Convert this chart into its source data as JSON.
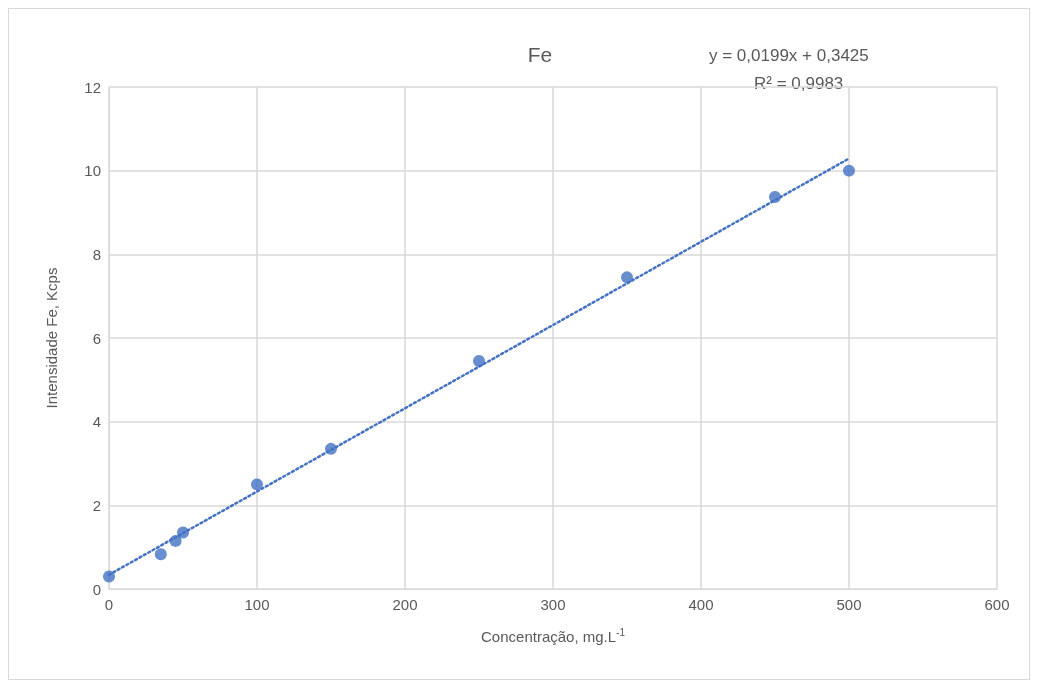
{
  "chart_data": {
    "type": "scatter",
    "title": "Fe",
    "xlabel": "Concentração, mg.L$^{-1}$",
    "ylabel": "Intensidade Fe, Kcps",
    "annotations": [
      "y = 0,0199x + 0,3425",
      "R² = 0,9983"
    ],
    "series": [
      {
        "color": "#4472c4",
        "marker": "circle",
        "x": [
          0,
          35,
          45,
          50,
          100,
          150,
          250,
          350,
          450,
          500
        ],
        "values": [
          0.3,
          0.83,
          1.15,
          1.35,
          2.5,
          3.35,
          5.45,
          7.45,
          9.37,
          10.0
        ]
      },
      {
        "type": "line",
        "color": "#4472c4",
        "marker": "none",
        "line_style": "dotted",
        "x": [
          0,
          500
        ],
        "values": [
          0.34,
          10.29
        ]
      }
    ],
    "xlim": [
      0,
      600
    ],
    "xticks": [
      0,
      100,
      200,
      300,
      400,
      500,
      600
    ],
    "ylim": [
      0,
      12
    ],
    "yticks": [
      0,
      2,
      4,
      6,
      8,
      10,
      12
    ],
    "grid": true
  }
}
